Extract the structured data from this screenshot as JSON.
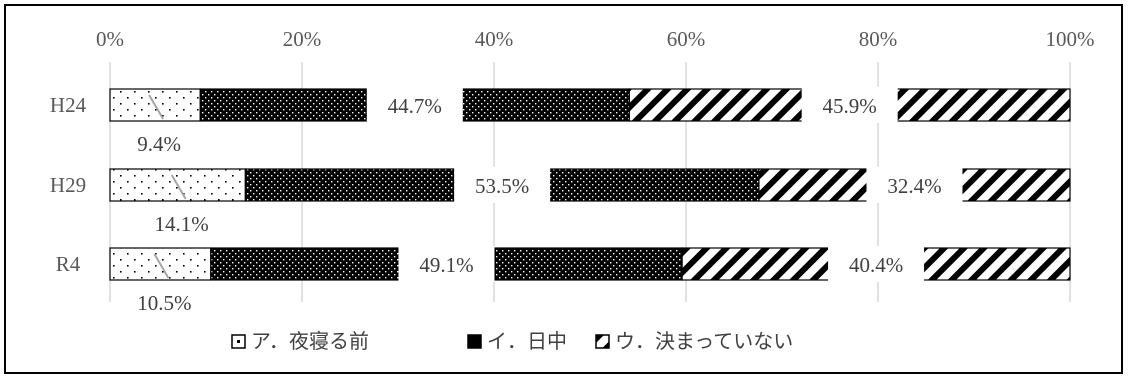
{
  "chart_data": {
    "type": "bar",
    "orientation": "horizontal",
    "stacked": true,
    "percent_stacked": true,
    "categories": [
      "H24",
      "H29",
      "R4"
    ],
    "series": [
      {
        "name": "ア．夜寝る前",
        "values": [
          9.4,
          14.1,
          10.5
        ],
        "labels": [
          "9.4%",
          "14.1%",
          "10.5%"
        ],
        "pattern": "sparse-dots"
      },
      {
        "name": "イ．日中",
        "values": [
          44.7,
          53.5,
          49.1
        ],
        "labels": [
          "44.7%",
          "53.5%",
          "49.1%"
        ],
        "pattern": "dense-dots"
      },
      {
        "name": "ウ．決まっていない",
        "values": [
          45.9,
          32.4,
          40.4
        ],
        "labels": [
          "45.9%",
          "32.4%",
          "40.4%"
        ],
        "pattern": "diagonal-stripes"
      }
    ],
    "x_ticks": [
      "0%",
      "20%",
      "40%",
      "60%",
      "80%",
      "100%"
    ],
    "xlim": [
      0,
      100
    ],
    "x_axis_position": "top",
    "grid": true,
    "legend": "bottom"
  },
  "colors": {
    "bar_fill_dark": "#000000",
    "bar_fill_light": "#ffffff",
    "gridline": "#d9d9d9",
    "axis_text": "#595959",
    "label_text": "#404040"
  }
}
